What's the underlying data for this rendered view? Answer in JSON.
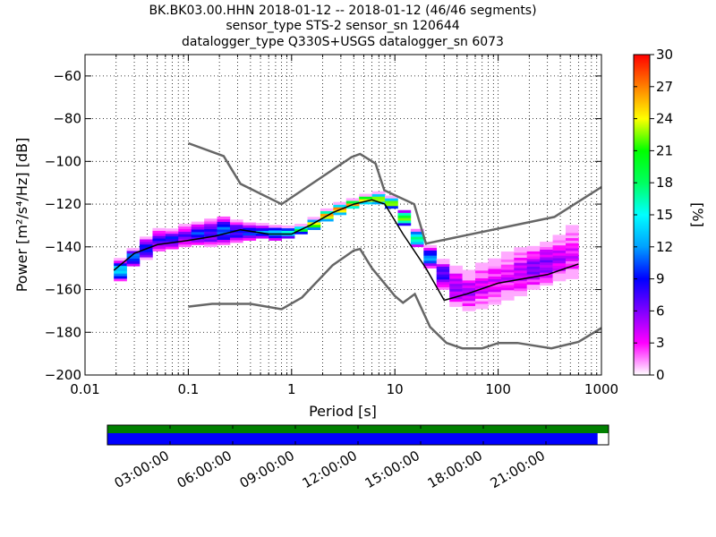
{
  "chart_data": {
    "type": "heatmap",
    "title_lines": [
      "BK.BK03.00.HHN   2018-01-12 -- 2018-01-12  (46/46 segments)",
      "sensor_type STS-2 sensor_sn 120644",
      "datalogger_type Q330S+USGS datalogger_sn 6073"
    ],
    "xlabel": "Period [s]",
    "ylabel": "Power [m²/s⁴/Hz] [dB]",
    "x_scale": "log",
    "xlim": [
      0.01,
      1000
    ],
    "ylim": [
      -200,
      -50
    ],
    "x_ticks": [
      {
        "value": 0.01,
        "label": "0.01"
      },
      {
        "value": 0.1,
        "label": "0.1"
      },
      {
        "value": 1,
        "label": "1"
      },
      {
        "value": 10,
        "label": "10"
      },
      {
        "value": 100,
        "label": "100"
      },
      {
        "value": 1000,
        "label": "1000"
      }
    ],
    "y_ticks": [
      -60,
      -80,
      -100,
      -120,
      -140,
      -160,
      -180,
      -200
    ],
    "grid": true,
    "colorbar": {
      "label": "[%]",
      "range": [
        0,
        30
      ],
      "ticks": [
        0,
        3,
        6,
        9,
        12,
        15,
        18,
        21,
        24,
        27,
        30
      ],
      "colormap": [
        "#ffffff",
        "#ff00ff",
        "#7f00ff",
        "#0000ff",
        "#00a0ff",
        "#00ffff",
        "#00ff60",
        "#00ff00",
        "#ffff00",
        "#ff8000",
        "#ff0000"
      ]
    },
    "noise_model_high": [
      [
        0.1,
        -91.5
      ],
      [
        0.22,
        -97.5
      ],
      [
        0.32,
        -110.5
      ],
      [
        0.8,
        -120
      ],
      [
        3.8,
        -98
      ],
      [
        4.6,
        -96.5
      ],
      [
        6.5,
        -101
      ],
      [
        7.9,
        -113.5
      ],
      [
        15.4,
        -120
      ],
      [
        20,
        -138.5
      ],
      [
        350,
        -126
      ],
      [
        1000,
        -112
      ]
    ],
    "noise_model_low": [
      [
        0.1,
        -168
      ],
      [
        0.17,
        -166.7
      ],
      [
        0.4,
        -166.7
      ],
      [
        0.8,
        -169.2
      ],
      [
        1.26,
        -163.7
      ],
      [
        2.5,
        -148.6
      ],
      [
        4,
        -141.7
      ],
      [
        4.6,
        -141
      ],
      [
        6,
        -150
      ],
      [
        10,
        -163
      ],
      [
        12,
        -166.2
      ],
      [
        15.6,
        -162.1
      ],
      [
        21.9,
        -177.5
      ],
      [
        31.6,
        -185
      ],
      [
        45,
        -187.5
      ],
      [
        70,
        -187.5
      ],
      [
        101,
        -185
      ],
      [
        154,
        -185
      ],
      [
        328,
        -187.5
      ],
      [
        600,
        -184.5
      ],
      [
        1000,
        -178
      ]
    ],
    "mean_curve": [
      [
        0.019,
        -151
      ],
      [
        0.03,
        -143
      ],
      [
        0.05,
        -139
      ],
      [
        0.1,
        -137
      ],
      [
        0.18,
        -135
      ],
      [
        0.32,
        -132
      ],
      [
        0.6,
        -134
      ],
      [
        1,
        -134
      ],
      [
        1.5,
        -130
      ],
      [
        2.5,
        -124
      ],
      [
        4,
        -120
      ],
      [
        6,
        -118
      ],
      [
        8,
        -120
      ],
      [
        12,
        -134
      ],
      [
        20,
        -150
      ],
      [
        30,
        -165
      ],
      [
        50,
        -162
      ],
      [
        100,
        -157
      ],
      [
        300,
        -153
      ],
      [
        600,
        -148
      ]
    ],
    "density_bands": [
      {
        "lo": -156,
        "hi": -146,
        "level": 16
      },
      {
        "lo": -149,
        "hi": -141,
        "level": 14
      },
      {
        "lo": -146,
        "hi": -136,
        "level": 12
      },
      {
        "lo": -142,
        "hi": -132,
        "level": 10
      },
      {
        "lo": -141,
        "hi": -132,
        "level": 11
      },
      {
        "lo": -140,
        "hi": -130,
        "level": 9
      },
      {
        "lo": -139,
        "hi": -129,
        "level": 12
      },
      {
        "lo": -140,
        "hi": -127,
        "level": 10
      },
      {
        "lo": -139,
        "hi": -126,
        "level": 13
      },
      {
        "lo": -138,
        "hi": -128,
        "level": 11
      },
      {
        "lo": -137,
        "hi": -129,
        "level": 12
      },
      {
        "lo": -136,
        "hi": -130,
        "level": 14
      },
      {
        "lo": -137,
        "hi": -130,
        "level": 15
      },
      {
        "lo": -136,
        "hi": -131,
        "level": 18
      },
      {
        "lo": -134,
        "hi": -130,
        "level": 22
      },
      {
        "lo": -132,
        "hi": -127,
        "level": 26
      },
      {
        "lo": -128,
        "hi": -123,
        "level": 29
      },
      {
        "lo": -125,
        "hi": -120,
        "level": 29
      },
      {
        "lo": -122,
        "hi": -118,
        "level": 29
      },
      {
        "lo": -120,
        "hi": -116,
        "level": 28
      },
      {
        "lo": -120,
        "hi": -115,
        "level": 27
      },
      {
        "lo": -122,
        "hi": -117,
        "level": 26
      },
      {
        "lo": -130,
        "hi": -123,
        "level": 24
      },
      {
        "lo": -140,
        "hi": -132,
        "level": 20
      },
      {
        "lo": -150,
        "hi": -140,
        "level": 14
      },
      {
        "lo": -160,
        "hi": -146,
        "level": 10
      },
      {
        "lo": -168,
        "hi": -150,
        "level": 8
      },
      {
        "lo": -170,
        "hi": -152,
        "level": 7
      },
      {
        "lo": -169,
        "hi": -148,
        "level": 6
      },
      {
        "lo": -167,
        "hi": -146,
        "level": 6
      },
      {
        "lo": -165,
        "hi": -143,
        "level": 6
      },
      {
        "lo": -163,
        "hi": -141,
        "level": 7
      },
      {
        "lo": -160,
        "hi": -140,
        "level": 8
      },
      {
        "lo": -158,
        "hi": -138,
        "level": 8
      },
      {
        "lo": -156,
        "hi": -135,
        "level": 7
      },
      {
        "lo": -155,
        "hi": -131,
        "level": 6
      }
    ],
    "coverage_ticks": [
      "03:00:00",
      "06:00:00",
      "09:00:00",
      "12:00:00",
      "15:00:00",
      "18:00:00",
      "21:00:00"
    ],
    "coverage_fraction": 0.978,
    "coverage_colors": {
      "data": "#008000",
      "used": "#0000ff"
    }
  }
}
